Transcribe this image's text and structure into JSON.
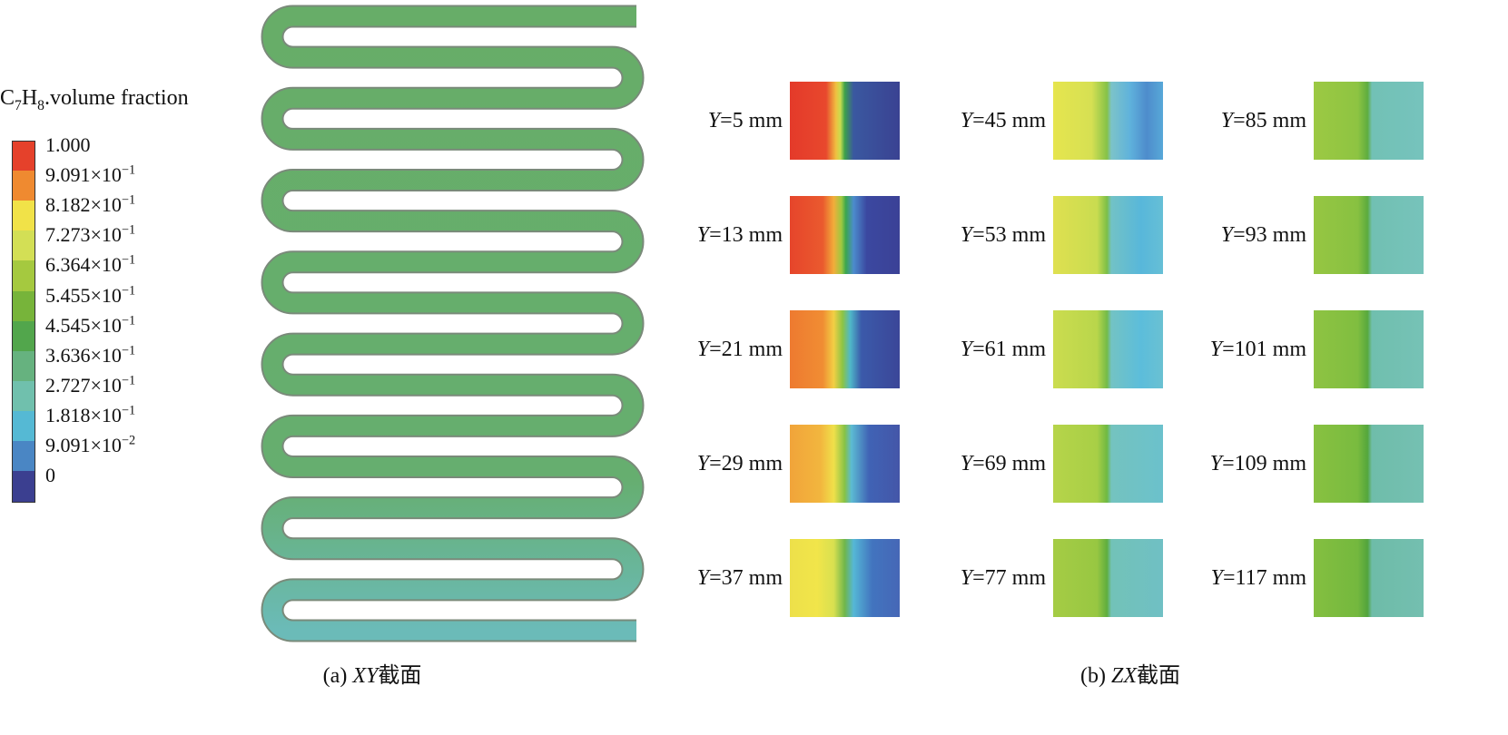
{
  "legend": {
    "title": [
      {
        "text": "C"
      },
      {
        "text": "7",
        "sub": true
      },
      {
        "text": "H"
      },
      {
        "text": "8",
        "sub": true
      },
      {
        "text": ".volume fraction"
      }
    ],
    "labels": [
      {
        "text": "1.000"
      },
      {
        "text": "9.091×10",
        "sup": "−1"
      },
      {
        "text": "8.182×10",
        "sup": "−1"
      },
      {
        "text": "7.273×10",
        "sup": "−1"
      },
      {
        "text": "6.364×10",
        "sup": "−1"
      },
      {
        "text": "5.455×10",
        "sup": "−1"
      },
      {
        "text": "4.545×10",
        "sup": "−1"
      },
      {
        "text": "3.636×10",
        "sup": "−1"
      },
      {
        "text": "2.727×10",
        "sup": "−1"
      },
      {
        "text": "1.818×10",
        "sup": "−1"
      },
      {
        "text": "9.091×10",
        "sup": "−2"
      },
      {
        "text": "0"
      }
    ],
    "colors": [
      "#e5412b",
      "#ef8a30",
      "#f1e248",
      "#d3df55",
      "#a5c93f",
      "#77b43a",
      "#52a64c",
      "#66b27f",
      "#70c0ad",
      "#55b9d4",
      "#4a86c4",
      "#3b3f90"
    ]
  },
  "caption_a": [
    {
      "text": "(a) "
    },
    {
      "text": "XY",
      "italic": true
    },
    {
      "text": "截面"
    }
  ],
  "caption_b": [
    {
      "text": "(b) "
    },
    {
      "text": "ZX",
      "italic": true
    },
    {
      "text": "截面"
    }
  ],
  "sections": [
    {
      "var": "Y",
      "text": "=5 mm"
    },
    {
      "var": "Y",
      "text": "=13 mm"
    },
    {
      "var": "Y",
      "text": "=21 mm"
    },
    {
      "var": "Y",
      "text": "=29 mm"
    },
    {
      "var": "Y",
      "text": "=37 mm"
    },
    {
      "var": "Y",
      "text": "=45 mm"
    },
    {
      "var": "Y",
      "text": "=53 mm"
    },
    {
      "var": "Y",
      "text": "=61 mm"
    },
    {
      "var": "Y",
      "text": "=69 mm"
    },
    {
      "var": "Y",
      "text": "=77 mm"
    },
    {
      "var": "Y",
      "text": "=85 mm"
    },
    {
      "var": "Y",
      "text": "=93 mm"
    },
    {
      "var": "Y",
      "text": "=101 mm"
    },
    {
      "var": "Y",
      "text": "=109 mm"
    },
    {
      "var": "Y",
      "text": "=117 mm"
    }
  ]
}
